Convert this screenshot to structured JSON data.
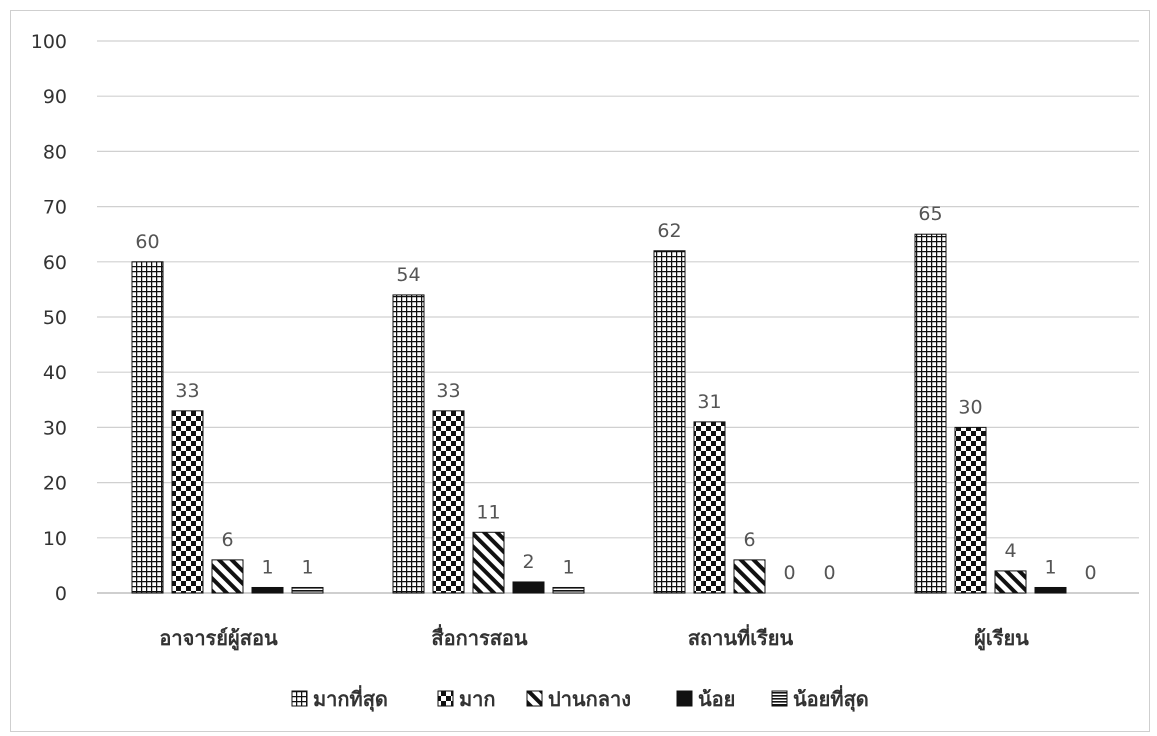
{
  "chart_data": {
    "type": "bar",
    "categories": [
      "อาจารย์ผู้สอน",
      "สื่อการสอน",
      "สถานที่เรียน",
      "ผู้เรียน"
    ],
    "series": [
      {
        "name": "มากที่สุด",
        "values": [
          60,
          54,
          62,
          65
        ],
        "pattern": "grid"
      },
      {
        "name": "มาก",
        "values": [
          33,
          33,
          31,
          30
        ],
        "pattern": "checker"
      },
      {
        "name": "ปานกลาง",
        "values": [
          6,
          11,
          6,
          4
        ],
        "pattern": "diagonal"
      },
      {
        "name": "น้อย",
        "values": [
          1,
          2,
          0,
          1
        ],
        "pattern": "solid"
      },
      {
        "name": "น้อยที่สุด",
        "values": [
          1,
          1,
          0,
          0
        ],
        "pattern": "hlines"
      }
    ],
    "ylim": [
      0,
      100
    ],
    "yticks": [
      0,
      10,
      20,
      30,
      40,
      50,
      60,
      70,
      80,
      90,
      100
    ],
    "grid": true,
    "legend_position": "bottom",
    "data_labels": true,
    "colors": {
      "bar": "#111111",
      "grid": "#d0d0d0",
      "axis": "#bfbfbf"
    }
  }
}
